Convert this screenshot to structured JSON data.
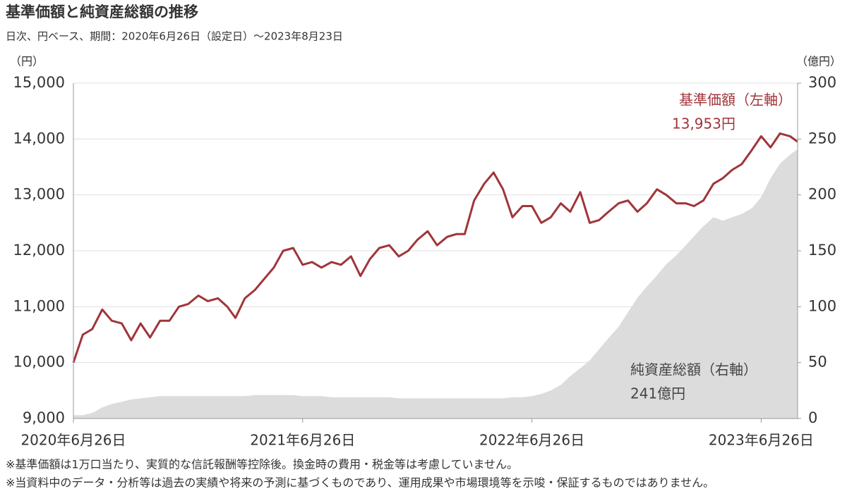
{
  "chart_data": {
    "type": "line",
    "title": "基準価額と純資産総額の推移",
    "subtitle": "日次、円ベース、期間：2020年6月26日（設定日）～2023年8月23日",
    "y_unit": "（円）",
    "y2_unit": "（億円）",
    "x": [
      "2020-06-26",
      "2020-07-11",
      "2020-07-26",
      "2020-08-11",
      "2020-08-26",
      "2020-09-11",
      "2020-09-26",
      "2020-10-11",
      "2020-10-26",
      "2020-11-11",
      "2020-11-26",
      "2020-12-11",
      "2020-12-26",
      "2021-01-11",
      "2021-01-26",
      "2021-02-11",
      "2021-02-26",
      "2021-03-11",
      "2021-03-26",
      "2021-04-11",
      "2021-04-26",
      "2021-05-11",
      "2021-05-26",
      "2021-06-11",
      "2021-06-26",
      "2021-07-11",
      "2021-07-26",
      "2021-08-11",
      "2021-08-26",
      "2021-09-11",
      "2021-09-26",
      "2021-10-11",
      "2021-10-26",
      "2021-11-11",
      "2021-11-26",
      "2021-12-11",
      "2021-12-26",
      "2022-01-11",
      "2022-01-26",
      "2022-02-11",
      "2022-02-26",
      "2022-03-11",
      "2022-03-26",
      "2022-04-11",
      "2022-04-26",
      "2022-05-11",
      "2022-05-26",
      "2022-06-11",
      "2022-06-26",
      "2022-07-11",
      "2022-07-26",
      "2022-08-11",
      "2022-08-26",
      "2022-09-11",
      "2022-09-26",
      "2022-10-11",
      "2022-10-26",
      "2022-11-11",
      "2022-11-26",
      "2022-12-11",
      "2022-12-26",
      "2023-01-11",
      "2023-01-26",
      "2023-02-11",
      "2023-02-26",
      "2023-03-11",
      "2023-03-26",
      "2023-04-11",
      "2023-04-26",
      "2023-05-11",
      "2023-05-26",
      "2023-06-11",
      "2023-06-26",
      "2023-07-11",
      "2023-07-26",
      "2023-08-11",
      "2023-08-23"
    ],
    "series": [
      {
        "name": "純資産総額（右軸）",
        "end_label": "241億円",
        "type": "area",
        "axis": "y2",
        "color": "#dcdcdc",
        "values": [
          3,
          3,
          5,
          10,
          13,
          15,
          17,
          18,
          19,
          20,
          20,
          20,
          20,
          20,
          20,
          20,
          20,
          20,
          20,
          21,
          21,
          21,
          21,
          21,
          20,
          20,
          20,
          19,
          19,
          19,
          19,
          19,
          19,
          19,
          18,
          18,
          18,
          18,
          18,
          18,
          18,
          18,
          18,
          18,
          18,
          18,
          19,
          19,
          20,
          22,
          25,
          30,
          38,
          45,
          52,
          62,
          72,
          82,
          95,
          108,
          118,
          128,
          138,
          146,
          155,
          163,
          172,
          180,
          177,
          180,
          183,
          188,
          198,
          215,
          228,
          236,
          241
        ]
      },
      {
        "name": "基準価額（左軸）",
        "end_label": "13,953円",
        "type": "line",
        "color": "#a0353a",
        "values": [
          10000,
          10500,
          10600,
          10950,
          10750,
          10700,
          10400,
          10700,
          10450,
          10750,
          10750,
          11000,
          11050,
          11200,
          11100,
          11150,
          11000,
          10800,
          11150,
          11300,
          11500,
          11700,
          12000,
          12050,
          11750,
          11800,
          11700,
          11800,
          11750,
          11900,
          11550,
          11850,
          12050,
          12100,
          11900,
          12000,
          12200,
          12350,
          12100,
          12250,
          12300,
          12300,
          12900,
          13200,
          13400,
          13100,
          12600,
          12800,
          12800,
          12500,
          12600,
          12850,
          12700,
          13050,
          12500,
          12550,
          12700,
          12850,
          12900,
          12700,
          12850,
          13100,
          13000,
          12850,
          12850,
          12800,
          12900,
          13200,
          13300,
          13450,
          13550,
          13800,
          14050,
          13850,
          14100,
          14050,
          13953
        ]
      }
    ],
    "xlim": [
      "2020-06-26",
      "2023-08-23"
    ],
    "xticks": [
      {
        "value": "2020-06-26",
        "label": "2020年6月26日"
      },
      {
        "value": "2021-06-26",
        "label": "2021年6月26日"
      },
      {
        "value": "2022-06-26",
        "label": "2022年6月26日"
      },
      {
        "value": "2023-06-26",
        "label": "2023年6月26日"
      }
    ],
    "ylim": [
      9000,
      15000
    ],
    "yticks": [
      {
        "value": 9000,
        "label": "9,000"
      },
      {
        "value": 10000,
        "label": "10,000"
      },
      {
        "value": 11000,
        "label": "11,000"
      },
      {
        "value": 12000,
        "label": "12,000"
      },
      {
        "value": 13000,
        "label": "13,000"
      },
      {
        "value": 14000,
        "label": "14,000"
      },
      {
        "value": 15000,
        "label": "15,000"
      }
    ],
    "y2lim": [
      0,
      300
    ],
    "y2ticks": [
      0,
      50,
      100,
      150,
      200,
      250,
      300
    ],
    "grid": true,
    "notes": [
      "※基準価額は1万口当たり、実質的な信託報酬等控除後。換金時の費用・税金等は考慮していません。",
      "※当資料中のデータ・分析等は過去の実績や将来の予測に基づくものであり、運用成果や市場環境等を示唆・保証するものではありません。"
    ]
  }
}
